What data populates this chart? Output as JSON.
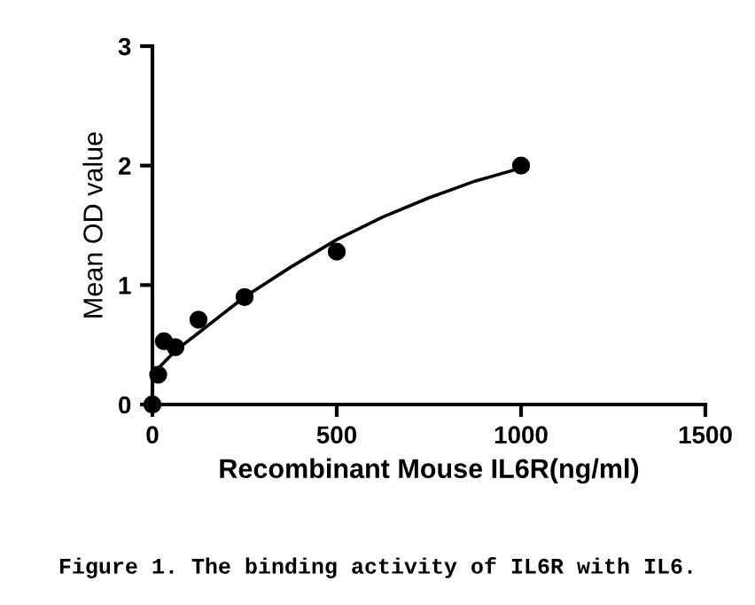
{
  "chart_data": {
    "type": "scatter",
    "xlabel": "Recombinant Mouse IL6R(ng/ml)",
    "ylabel": "Mean OD value",
    "annotations": [
      "Figure 1. The binding activity of IL6R with IL6."
    ],
    "series": [
      {
        "color": "#000000",
        "marker": "circle",
        "x": [
          0,
          15.6,
          31.25,
          62.5,
          125,
          250,
          500,
          1000
        ],
        "values": [
          0,
          0.25,
          0.53,
          0.48,
          0.71,
          0.9,
          1.28,
          2.0
        ]
      },
      {
        "type": "line",
        "color": "#000000",
        "line_style": "solid",
        "x": [
          15,
          62,
          125,
          250,
          375,
          500,
          625,
          750,
          875,
          1000
        ],
        "values": [
          0.3,
          0.45,
          0.6,
          0.9,
          1.15,
          1.38,
          1.57,
          1.73,
          1.87,
          1.98
        ]
      }
    ],
    "xlim": [
      0,
      1500
    ],
    "xticks": [
      0,
      500,
      1000,
      1500
    ],
    "ylim": [
      0,
      3
    ],
    "yticks": [
      0,
      1,
      2,
      3
    ],
    "grid": false,
    "legend": false
  }
}
